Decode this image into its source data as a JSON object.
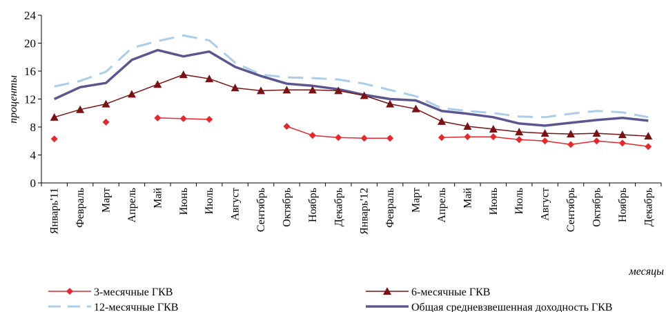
{
  "chart_data": {
    "type": "line",
    "title": "",
    "xlabel": "месяцы",
    "ylabel": "проценты",
    "ylim": [
      0,
      24
    ],
    "yticks": [
      "0",
      "4",
      "8",
      "12",
      "16",
      "20",
      "24"
    ],
    "grid": false,
    "legend": "bottom",
    "categories": [
      "Январь'11",
      "Февраль",
      "Март",
      "Апрель",
      "Май",
      "Июнь",
      "Июль",
      "Август",
      "Сентябрь",
      "Октябрь",
      "Ноябрь",
      "Декабрь",
      "Январь'12",
      "Февраль",
      "Март",
      "Апрель",
      "Май",
      "Июнь",
      "Июль",
      "Август",
      "Сентябрь",
      "Октябрь",
      "Ноябрь",
      "Декабрь"
    ],
    "series": [
      {
        "name": "3-месячные ГКВ",
        "color": "#e8262d",
        "marker": "diamond",
        "style": "solid",
        "values": [
          6.3,
          null,
          8.7,
          null,
          9.3,
          9.2,
          9.1,
          null,
          null,
          8.1,
          6.8,
          6.5,
          6.4,
          6.4,
          null,
          6.5,
          6.6,
          6.6,
          6.2,
          6.0,
          5.5,
          6.0,
          5.7,
          5.2
        ]
      },
      {
        "name": "6-месячные ГКВ",
        "color": "#7a1214",
        "marker": "triangle",
        "style": "solid",
        "values": [
          9.4,
          10.5,
          11.3,
          12.7,
          14.1,
          15.5,
          14.9,
          13.6,
          13.2,
          13.3,
          13.3,
          13.2,
          12.5,
          11.3,
          10.6,
          8.8,
          8.1,
          7.7,
          7.3,
          7.1,
          7.0,
          7.1,
          6.9,
          6.7
        ]
      },
      {
        "name": "12-месячные ГКВ",
        "color": "#a9cdea",
        "marker": "none",
        "style": "dashed",
        "values": [
          13.8,
          14.6,
          15.9,
          19.3,
          20.3,
          21.1,
          20.4,
          17.2,
          15.5,
          15.1,
          15.0,
          14.8,
          14.2,
          13.3,
          12.4,
          10.7,
          10.3,
          10.0,
          9.5,
          9.4,
          9.9,
          10.3,
          10.1,
          9.4
        ]
      },
      {
        "name": "Общая средневзвешенная доходность ГКВ",
        "color": "#5a5790",
        "marker": "none",
        "style": "solid",
        "values": [
          12.0,
          13.7,
          14.3,
          17.6,
          19.0,
          18.1,
          18.8,
          16.6,
          15.3,
          14.2,
          13.9,
          13.4,
          12.6,
          12.0,
          11.8,
          10.3,
          9.9,
          9.4,
          8.5,
          8.2,
          8.6,
          9.0,
          9.3,
          8.9
        ]
      }
    ]
  }
}
